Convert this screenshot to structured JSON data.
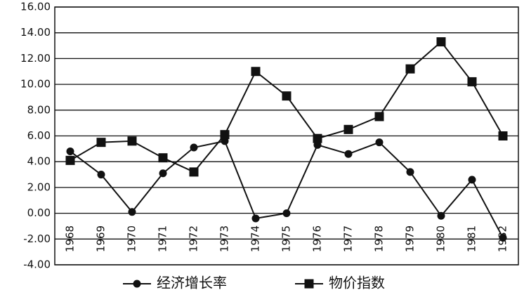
{
  "chart_data": {
    "type": "line",
    "categories": [
      "1968",
      "1969",
      "1970",
      "1971",
      "1972",
      "1973",
      "1974",
      "1975",
      "1976",
      "1977",
      "1978",
      "1979",
      "1980",
      "1981",
      "1982"
    ],
    "series": [
      {
        "name": "经济增长率",
        "color": "#111111",
        "marker": "circle",
        "values": [
          4.8,
          3.0,
          0.1,
          3.1,
          5.1,
          5.6,
          -0.4,
          0.0,
          5.3,
          4.6,
          5.5,
          3.2,
          -0.2,
          2.6,
          -1.9
        ]
      },
      {
        "name": "物价指数",
        "color": "#111111",
        "marker": "square",
        "values": [
          4.1,
          5.5,
          5.6,
          4.3,
          3.2,
          6.1,
          11.0,
          9.1,
          5.8,
          6.5,
          7.5,
          11.2,
          13.3,
          10.2,
          6.0
        ]
      }
    ],
    "ylim": [
      -4,
      16
    ],
    "yticks": [
      {
        "value": -4,
        "label": "-4.00"
      },
      {
        "value": -2,
        "label": "-2.00"
      },
      {
        "value": 0,
        "label": "0.00"
      },
      {
        "value": 2,
        "label": "2.00"
      },
      {
        "value": 4,
        "label": "4.00"
      },
      {
        "value": 6,
        "label": "6.00"
      },
      {
        "value": 8,
        "label": "8.00"
      },
      {
        "value": 10,
        "label": "10.00"
      },
      {
        "value": 12,
        "label": "12.00"
      },
      {
        "value": 14,
        "label": "14.00"
      },
      {
        "value": 16,
        "label": "16.00"
      }
    ],
    "grid": true,
    "legend": "bottom"
  }
}
